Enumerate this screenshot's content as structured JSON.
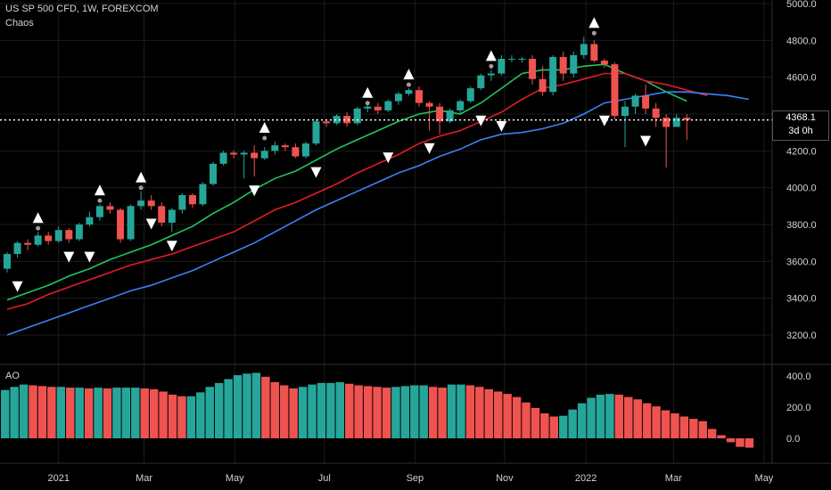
{
  "header": {
    "symbol_line": "US SP 500 CFD, 1W, FOREXCOM",
    "indicator_name": "Chaos"
  },
  "ao_label": "AO",
  "price_badge": {
    "price": "4368.1",
    "countdown": "3d 0h"
  },
  "colors": {
    "background": "#000000",
    "up": "#26a69a",
    "down": "#ef5350",
    "green_line": "#22c55e",
    "red_line": "#e11d24",
    "blue_line": "#3b82f6",
    "fractal": "#ffffff",
    "grid": "#1c1c1c",
    "text": "#d1d4dc"
  },
  "chart_data": {
    "type": "candlestick",
    "price_axis": {
      "ticks": [
        3200,
        3400,
        3600,
        3800,
        4000,
        4200,
        4400,
        4600,
        4800,
        5000
      ],
      "tick_labels": [
        "3200.0",
        "3400.0",
        "3600.0",
        "3800.0",
        "4000.0",
        "4200.0",
        "4400.0",
        "4600.0",
        "4800.0",
        "5000.0"
      ]
    },
    "ao_axis": {
      "ticks": [
        0,
        200,
        400
      ],
      "tick_labels": [
        "0.0",
        "200.0",
        "400.0"
      ]
    },
    "x_axis": {
      "labels": [
        {
          "label": "2021",
          "week": 5
        },
        {
          "label": "Mar",
          "week": 13.3
        },
        {
          "label": "May",
          "week": 22.1
        },
        {
          "label": "Jul",
          "week": 30.8
        },
        {
          "label": "Sep",
          "week": 39.6
        },
        {
          "label": "Nov",
          "week": 48.3
        },
        {
          "label": "2022",
          "week": 56.2
        },
        {
          "label": "Mar",
          "week": 64.7
        },
        {
          "label": "May",
          "week": 73.5
        }
      ]
    },
    "last_price": 4368.1,
    "candles": [
      [
        3560,
        3640,
        3540,
        3650
      ],
      [
        3640,
        3700,
        3620,
        3710
      ],
      [
        3700,
        3690,
        3660,
        3720
      ],
      [
        3690,
        3740,
        3680,
        3760
      ],
      [
        3740,
        3710,
        3690,
        3760
      ],
      [
        3710,
        3770,
        3700,
        3790
      ],
      [
        3770,
        3720,
        3700,
        3780
      ],
      [
        3720,
        3800,
        3710,
        3810
      ],
      [
        3800,
        3840,
        3790,
        3870
      ],
      [
        3840,
        3900,
        3820,
        3910
      ],
      [
        3900,
        3880,
        3860,
        3920
      ],
      [
        3880,
        3720,
        3700,
        3890
      ],
      [
        3720,
        3900,
        3710,
        3910
      ],
      [
        3900,
        3930,
        3880,
        3980
      ],
      [
        3930,
        3900,
        3880,
        3960
      ],
      [
        3900,
        3810,
        3790,
        3920
      ],
      [
        3810,
        3880,
        3760,
        3890
      ],
      [
        3880,
        3960,
        3860,
        3970
      ],
      [
        3960,
        3910,
        3890,
        3970
      ],
      [
        3910,
        4020,
        3900,
        4030
      ],
      [
        4020,
        4130,
        4010,
        4140
      ],
      [
        4130,
        4190,
        4120,
        4200
      ],
      [
        4190,
        4180,
        4160,
        4200
      ],
      [
        4180,
        4190,
        4050,
        4200
      ],
      [
        4190,
        4160,
        4060,
        4230
      ],
      [
        4160,
        4200,
        4150,
        4220
      ],
      [
        4200,
        4230,
        4180,
        4250
      ],
      [
        4230,
        4220,
        4200,
        4240
      ],
      [
        4220,
        4170,
        4160,
        4240
      ],
      [
        4170,
        4240,
        4160,
        4250
      ],
      [
        4240,
        4360,
        4230,
        4370
      ],
      [
        4360,
        4350,
        4330,
        4370
      ],
      [
        4350,
        4390,
        4340,
        4400
      ],
      [
        4390,
        4350,
        4330,
        4410
      ],
      [
        4350,
        4430,
        4340,
        4440
      ],
      [
        4430,
        4440,
        4410,
        4460
      ],
      [
        4440,
        4420,
        4400,
        4460
      ],
      [
        4420,
        4470,
        4410,
        4480
      ],
      [
        4470,
        4510,
        4450,
        4520
      ],
      [
        4510,
        4530,
        4500,
        4540
      ],
      [
        4530,
        4460,
        4440,
        4550
      ],
      [
        4460,
        4440,
        4310,
        4470
      ],
      [
        4440,
        4360,
        4290,
        4460
      ],
      [
        4360,
        4420,
        4350,
        4430
      ],
      [
        4420,
        4470,
        4400,
        4480
      ],
      [
        4470,
        4540,
        4460,
        4550
      ],
      [
        4540,
        4610,
        4530,
        4620
      ],
      [
        4610,
        4620,
        4580,
        4640
      ],
      [
        4620,
        4700,
        4610,
        4720
      ],
      [
        4700,
        4700,
        4680,
        4720
      ],
      [
        4700,
        4700,
        4680,
        4710
      ],
      [
        4700,
        4590,
        4560,
        4720
      ],
      [
        4590,
        4520,
        4500,
        4660
      ],
      [
        4520,
        4710,
        4500,
        4720
      ],
      [
        4710,
        4620,
        4580,
        4740
      ],
      [
        4620,
        4720,
        4600,
        4740
      ],
      [
        4720,
        4780,
        4700,
        4820
      ],
      [
        4780,
        4690,
        4680,
        4800
      ],
      [
        4690,
        4670,
        4650,
        4700
      ],
      [
        4670,
        4390,
        4370,
        4680
      ],
      [
        4390,
        4440,
        4220,
        4470
      ],
      [
        4440,
        4500,
        4400,
        4510
      ],
      [
        4500,
        4430,
        4400,
        4560
      ],
      [
        4430,
        4380,
        4330,
        4460
      ],
      [
        4380,
        4330,
        4110,
        4400
      ],
      [
        4330,
        4380,
        4330,
        4400
      ],
      [
        4380,
        4368,
        4260,
        4400
      ]
    ],
    "fractals_up": [
      [
        3,
        3760
      ],
      [
        9,
        3910
      ],
      [
        13,
        3980
      ],
      [
        25,
        4250
      ],
      [
        35,
        4440
      ],
      [
        39,
        4540
      ],
      [
        47,
        4640
      ],
      [
        57,
        4820
      ]
    ],
    "fractals_down": [
      [
        1,
        3540
      ],
      [
        6,
        3700
      ],
      [
        8,
        3700
      ],
      [
        14,
        3880
      ],
      [
        16,
        3760
      ],
      [
        24,
        4060
      ],
      [
        30,
        4160
      ],
      [
        37,
        4240
      ],
      [
        41,
        4290
      ],
      [
        46,
        4440
      ],
      [
        48,
        4410
      ],
      [
        58,
        4440
      ],
      [
        62,
        4330
      ]
    ],
    "series": [
      {
        "values": [
          [
            0,
            3390
          ],
          [
            2,
            3430
          ],
          [
            4,
            3470
          ],
          [
            6,
            3520
          ],
          [
            8,
            3560
          ],
          [
            10,
            3610
          ],
          [
            12,
            3650
          ],
          [
            14,
            3690
          ],
          [
            16,
            3740
          ],
          [
            18,
            3790
          ],
          [
            20,
            3860
          ],
          [
            22,
            3920
          ],
          [
            24,
            3990
          ],
          [
            26,
            4050
          ],
          [
            28,
            4090
          ],
          [
            30,
            4150
          ],
          [
            32,
            4210
          ],
          [
            34,
            4260
          ],
          [
            36,
            4310
          ],
          [
            38,
            4360
          ],
          [
            40,
            4400
          ],
          [
            42,
            4420
          ],
          [
            44,
            4400
          ],
          [
            46,
            4460
          ],
          [
            48,
            4540
          ],
          [
            50,
            4620
          ],
          [
            52,
            4640
          ],
          [
            54,
            4640
          ],
          [
            56,
            4660
          ],
          [
            58,
            4670
          ],
          [
            60,
            4620
          ],
          [
            62,
            4580
          ],
          [
            64,
            4520
          ],
          [
            66,
            4470
          ]
        ]
      },
      {
        "values": [
          [
            0,
            3340
          ],
          [
            2,
            3370
          ],
          [
            4,
            3420
          ],
          [
            6,
            3460
          ],
          [
            8,
            3500
          ],
          [
            10,
            3540
          ],
          [
            12,
            3580
          ],
          [
            14,
            3610
          ],
          [
            16,
            3640
          ],
          [
            18,
            3680
          ],
          [
            20,
            3720
          ],
          [
            22,
            3760
          ],
          [
            24,
            3820
          ],
          [
            26,
            3880
          ],
          [
            28,
            3920
          ],
          [
            30,
            3970
          ],
          [
            32,
            4020
          ],
          [
            34,
            4080
          ],
          [
            36,
            4130
          ],
          [
            38,
            4180
          ],
          [
            40,
            4240
          ],
          [
            42,
            4280
          ],
          [
            44,
            4310
          ],
          [
            46,
            4360
          ],
          [
            48,
            4410
          ],
          [
            50,
            4480
          ],
          [
            52,
            4540
          ],
          [
            54,
            4560
          ],
          [
            56,
            4590
          ],
          [
            58,
            4620
          ],
          [
            60,
            4620
          ],
          [
            62,
            4580
          ],
          [
            64,
            4560
          ],
          [
            66,
            4530
          ],
          [
            68,
            4500
          ]
        ]
      },
      {
        "values": [
          [
            0,
            3200
          ],
          [
            2,
            3240
          ],
          [
            4,
            3280
          ],
          [
            6,
            3320
          ],
          [
            8,
            3360
          ],
          [
            10,
            3400
          ],
          [
            12,
            3440
          ],
          [
            14,
            3470
          ],
          [
            16,
            3510
          ],
          [
            18,
            3550
          ],
          [
            20,
            3600
          ],
          [
            22,
            3650
          ],
          [
            24,
            3700
          ],
          [
            26,
            3760
          ],
          [
            28,
            3820
          ],
          [
            30,
            3880
          ],
          [
            32,
            3930
          ],
          [
            34,
            3980
          ],
          [
            36,
            4030
          ],
          [
            38,
            4080
          ],
          [
            40,
            4120
          ],
          [
            42,
            4170
          ],
          [
            44,
            4210
          ],
          [
            46,
            4260
          ],
          [
            48,
            4290
          ],
          [
            50,
            4300
          ],
          [
            52,
            4320
          ],
          [
            54,
            4350
          ],
          [
            56,
            4400
          ],
          [
            58,
            4460
          ],
          [
            60,
            4480
          ],
          [
            62,
            4500
          ],
          [
            64,
            4520
          ],
          [
            66,
            4520
          ],
          [
            68,
            4510
          ],
          [
            70,
            4500
          ],
          [
            72,
            4480
          ]
        ]
      }
    ],
    "ao_values": [
      310,
      330,
      345,
      340,
      335,
      330,
      330,
      325,
      325,
      320,
      325,
      320,
      325,
      325,
      325,
      320,
      315,
      300,
      280,
      270,
      270,
      295,
      330,
      355,
      380,
      405,
      415,
      420,
      395,
      360,
      340,
      320,
      330,
      345,
      355,
      355,
      360,
      350,
      340,
      335,
      330,
      325,
      330,
      335,
      340,
      340,
      330,
      325,
      345,
      345,
      340,
      330,
      315,
      300,
      285,
      265,
      230,
      195,
      160,
      140,
      145,
      185,
      225,
      260,
      280,
      285,
      280,
      265,
      250,
      225,
      205,
      180,
      160,
      140,
      125,
      110,
      60,
      20,
      -25,
      -55,
      -60
    ]
  }
}
